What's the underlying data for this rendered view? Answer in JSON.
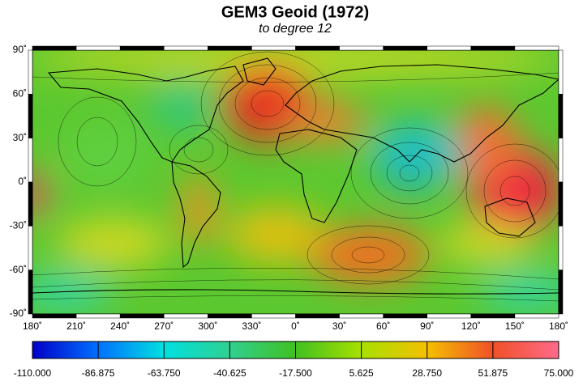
{
  "header": {
    "title": "GEM3 Geoid (1972)",
    "subtitle": "to degree 12"
  },
  "map": {
    "lat_labels": [
      "90˚",
      "60˚",
      "30˚",
      "0˚",
      "-30˚",
      "-60˚",
      "-90˚"
    ],
    "lon_labels": [
      "180˚",
      "210˚",
      "240˚",
      "270˚",
      "300˚",
      "330˚",
      "0˚",
      "30˚",
      "60˚",
      "90˚",
      "120˚",
      "150˚",
      "180˚"
    ]
  },
  "colorbar": {
    "labels": [
      "-110.000",
      "-86.875",
      "-63.750",
      "-40.625",
      "-17.500",
      "5.625",
      "28.750",
      "51.875",
      "75.000"
    ]
  }
}
